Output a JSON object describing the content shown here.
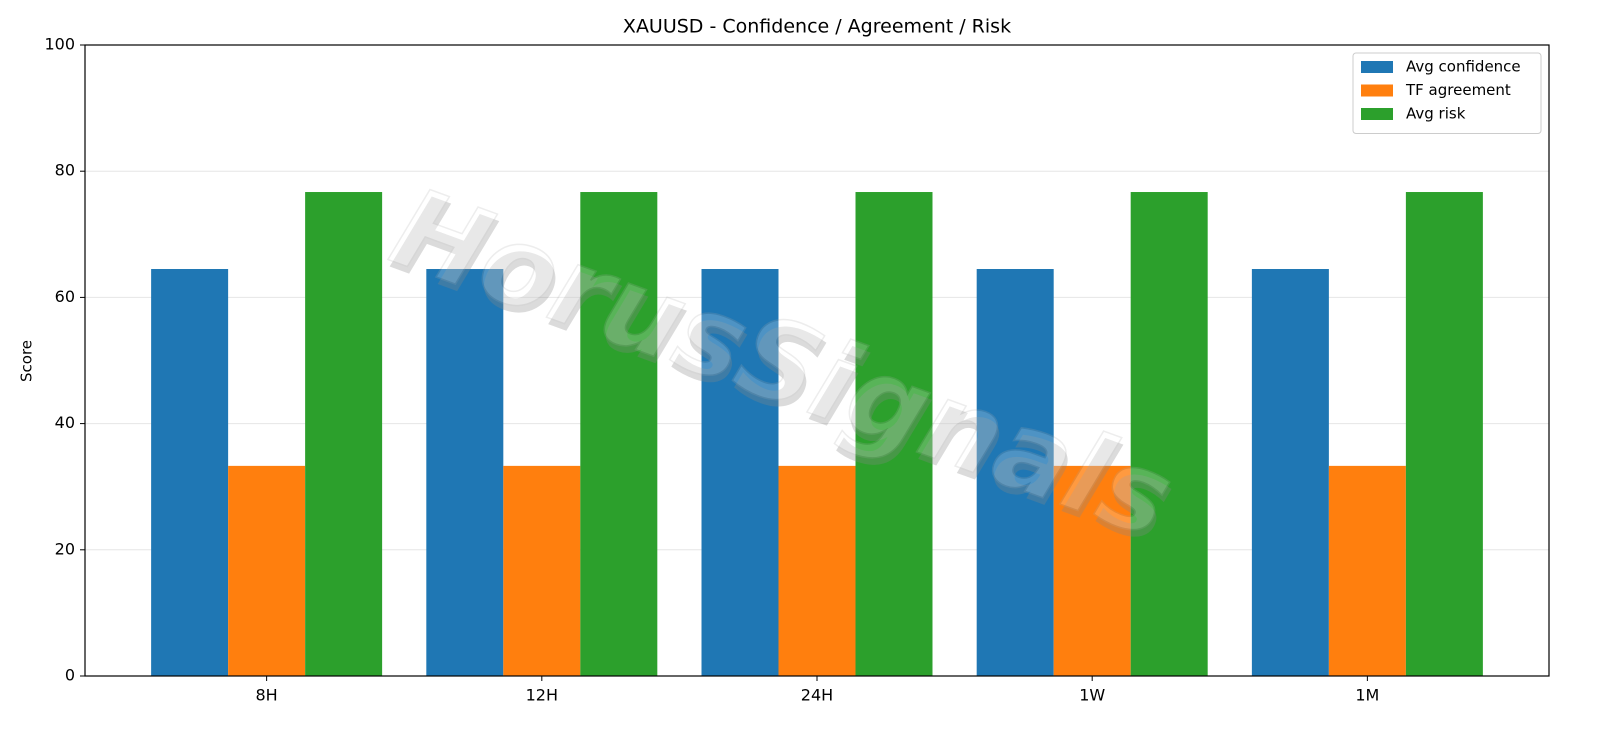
{
  "chart_data": {
    "type": "bar",
    "title": "XAUUSD - Confidence / Agreement / Risk",
    "ylabel": "Score",
    "categories": [
      "8H",
      "12H",
      "24H",
      "1W",
      "1M"
    ],
    "series": [
      {
        "name": "Avg confidence",
        "color": "#1f77b4",
        "values": [
          64.5,
          64.5,
          64.5,
          64.5,
          64.5
        ]
      },
      {
        "name": "TF agreement",
        "color": "#ff7f0e",
        "values": [
          33.3,
          33.3,
          33.3,
          33.3,
          33.3
        ]
      },
      {
        "name": "Avg risk",
        "color": "#2ca02c",
        "values": [
          76.7,
          76.7,
          76.7,
          76.7,
          76.7
        ]
      }
    ],
    "ylim": [
      0,
      100
    ],
    "yticks": [
      0,
      20,
      40,
      60,
      80,
      100
    ],
    "grid": true,
    "legend": "upper right",
    "watermark": "HorusSignals"
  }
}
